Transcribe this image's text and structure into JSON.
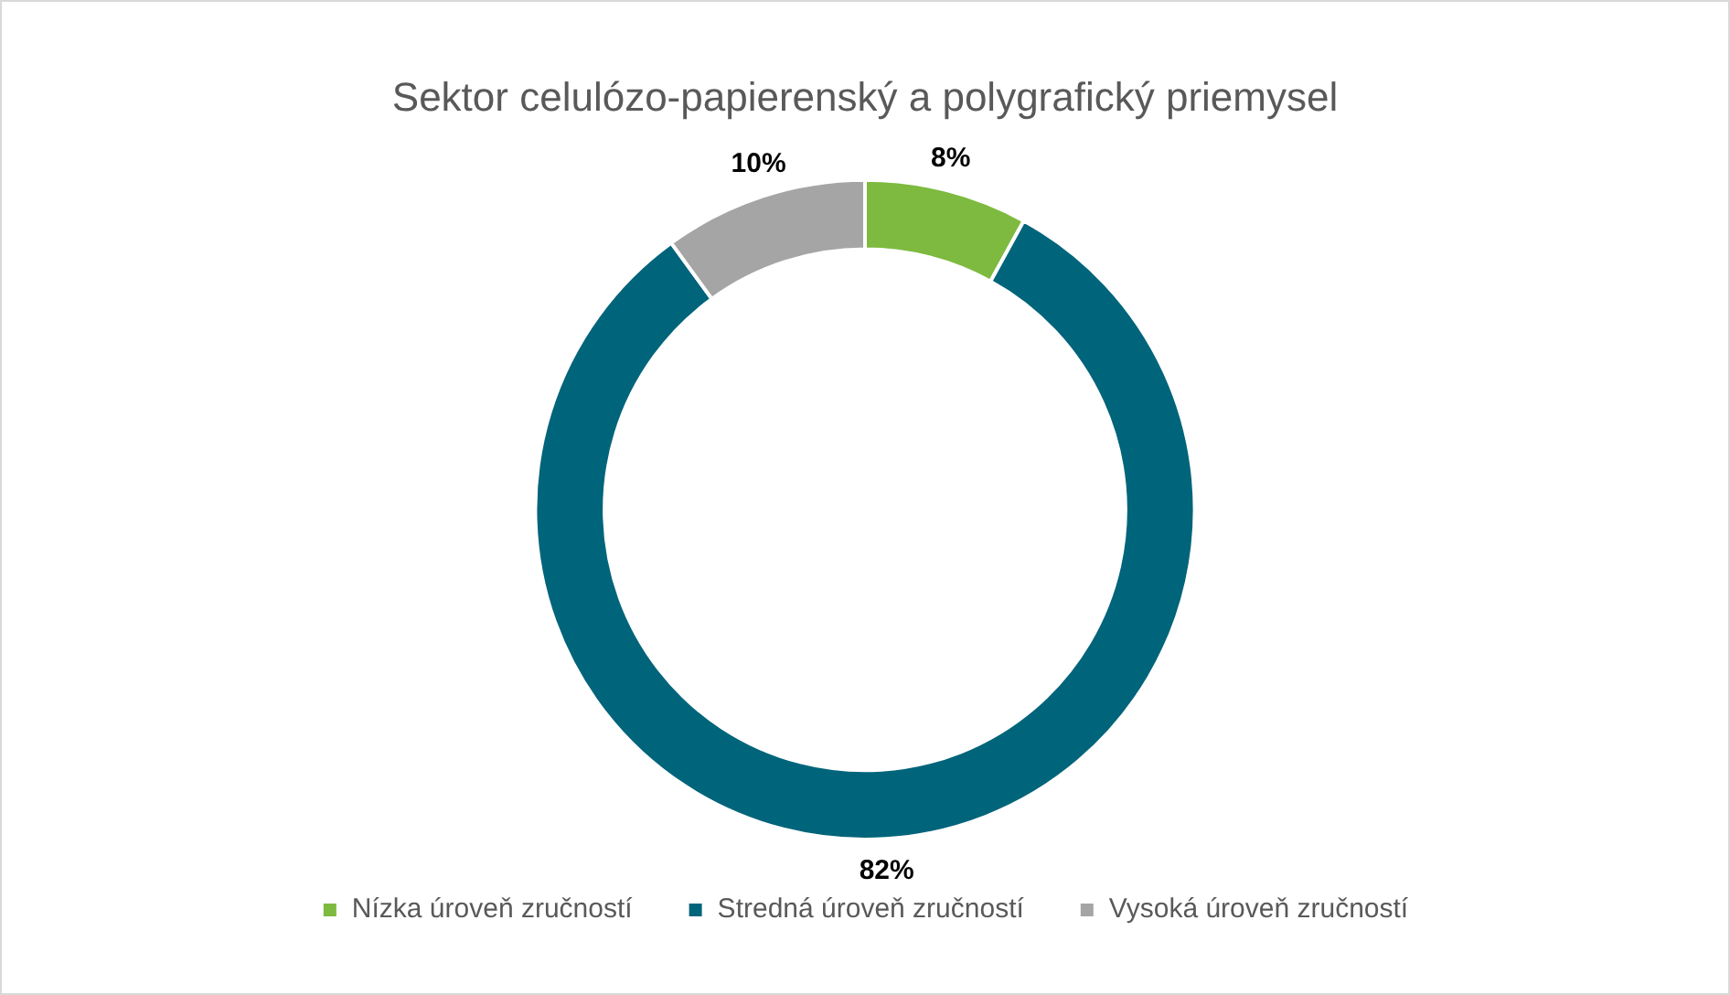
{
  "chart_data": {
    "type": "donut",
    "title": "Sektor celulózo-papierenský a polygrafický priemysel",
    "categories": [
      "Nízka úroveň zručností",
      "Stredná úroveň zručností",
      "Vysoká úroveň zručností"
    ],
    "values": [
      8,
      82,
      10
    ],
    "colors": [
      "#7dba3f",
      "#00647a",
      "#a5a5a5"
    ],
    "value_labels": [
      "8%",
      "82%",
      "10%"
    ],
    "legend": "bottom"
  }
}
